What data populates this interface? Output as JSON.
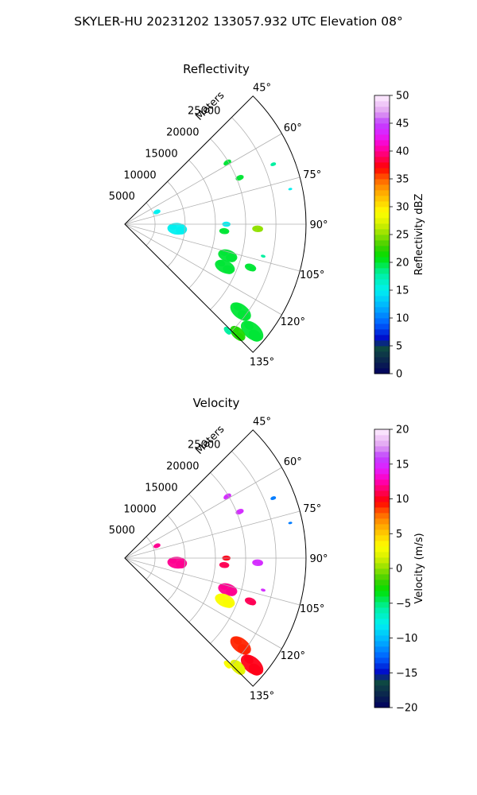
{
  "figure": {
    "suptitle": "SKYLER-HU  20231202  133057.932 UTC Elevation 08°"
  },
  "chart_data": [
    {
      "type": "ppi-sector",
      "title": "Reflectivity",
      "range_label": "Meters",
      "range_ticks": [
        5000,
        10000,
        15000,
        20000,
        25000
      ],
      "range_tick_labels": [
        "5000",
        "10000",
        "15000",
        "20000",
        "25000"
      ],
      "range_max": 30000,
      "azimuth_ticks": [
        45,
        60,
        75,
        90,
        105,
        120,
        135
      ],
      "azimuth_tick_labels": [
        "45°",
        "60°",
        "75°",
        "90°",
        "105°",
        "120°",
        "135°"
      ],
      "azimuth_range": [
        45,
        135
      ],
      "grid": true,
      "colorbar": {
        "label": "Reflectivity dBZ",
        "range": [
          0,
          50
        ],
        "ticks": [
          0,
          5,
          10,
          15,
          20,
          25,
          30,
          35,
          40,
          45,
          50
        ],
        "tick_labels": [
          "0",
          "5",
          "10",
          "15",
          "20",
          "25",
          "30",
          "35",
          "40",
          "45",
          "50"
        ]
      },
      "cells": [
        {
          "az": 69,
          "r": 5700,
          "v": 15,
          "s": 0.28
        },
        {
          "az": 95,
          "r": 8700,
          "v": 15,
          "s": 0.75
        },
        {
          "az": 94,
          "r": 16500,
          "v": 20,
          "s": 0.38
        },
        {
          "az": 92,
          "r": 22000,
          "v": 25,
          "s": 0.42
        },
        {
          "az": 90,
          "r": 16800,
          "v": 15,
          "s": 0.32
        },
        {
          "az": 107,
          "r": 17800,
          "v": 20,
          "s": 0.75
        },
        {
          "az": 113,
          "r": 18000,
          "v": 20,
          "s": 0.8
        },
        {
          "az": 109,
          "r": 22000,
          "v": 20,
          "s": 0.45
        },
        {
          "az": 127,
          "r": 24000,
          "v": 20,
          "s": 0.9
        },
        {
          "az": 130,
          "r": 27500,
          "v": 20,
          "s": 1.0
        },
        {
          "az": 134,
          "r": 26000,
          "v": 22,
          "s": 0.7
        },
        {
          "az": 136,
          "r": 24500,
          "v": 18,
          "s": 0.35
        },
        {
          "az": 59,
          "r": 19800,
          "v": 20,
          "s": 0.32
        },
        {
          "az": 68,
          "r": 20500,
          "v": 20,
          "s": 0.32
        },
        {
          "az": 68,
          "r": 26500,
          "v": 18,
          "s": 0.22
        },
        {
          "az": 78,
          "r": 28000,
          "v": 15,
          "s": 0.15
        },
        {
          "az": 103,
          "r": 23500,
          "v": 18,
          "s": 0.18
        }
      ]
    },
    {
      "type": "ppi-sector",
      "title": "Velocity",
      "range_label": "Meters",
      "range_ticks": [
        5000,
        10000,
        15000,
        20000,
        25000
      ],
      "range_tick_labels": [
        "5000",
        "10000",
        "15000",
        "20000",
        "25000"
      ],
      "range_max": 30000,
      "azimuth_ticks": [
        45,
        60,
        75,
        90,
        105,
        120,
        135
      ],
      "azimuth_tick_labels": [
        "45°",
        "60°",
        "75°",
        "90°",
        "105°",
        "120°",
        "135°"
      ],
      "azimuth_range": [
        45,
        135
      ],
      "grid": true,
      "colorbar": {
        "label": "Velocity (m/s)",
        "range": [
          -20,
          20
        ],
        "ticks": [
          -20,
          -15,
          -10,
          -5,
          0,
          5,
          10,
          15,
          20
        ],
        "tick_labels": [
          "−20",
          "−15",
          "−10",
          "−5",
          "0",
          "5",
          "10",
          "15",
          "20"
        ]
      },
      "cells": [
        {
          "az": 69,
          "r": 5700,
          "v": 12,
          "s": 0.28
        },
        {
          "az": 95,
          "r": 8700,
          "v": 12,
          "s": 0.75
        },
        {
          "az": 94,
          "r": 16500,
          "v": 11,
          "s": 0.38
        },
        {
          "az": 92,
          "r": 22000,
          "v": 15,
          "s": 0.42
        },
        {
          "az": 90,
          "r": 16800,
          "v": 10,
          "s": 0.32
        },
        {
          "az": 107,
          "r": 17800,
          "v": 12,
          "s": 0.75
        },
        {
          "az": 113,
          "r": 18000,
          "v": 3,
          "s": 0.8
        },
        {
          "az": 109,
          "r": 22000,
          "v": 11,
          "s": 0.45
        },
        {
          "az": 127,
          "r": 24000,
          "v": 9,
          "s": 0.9
        },
        {
          "az": 130,
          "r": 27500,
          "v": 10,
          "s": 1.0
        },
        {
          "az": 134,
          "r": 26000,
          "v": 2,
          "s": 0.7
        },
        {
          "az": 136,
          "r": 24500,
          "v": 3,
          "s": 0.35
        },
        {
          "az": 59,
          "r": 19800,
          "v": 15,
          "s": 0.32
        },
        {
          "az": 68,
          "r": 20500,
          "v": 15,
          "s": 0.32
        },
        {
          "az": 68,
          "r": 26500,
          "v": -12,
          "s": 0.22
        },
        {
          "az": 78,
          "r": 28000,
          "v": -12,
          "s": 0.15
        },
        {
          "az": 103,
          "r": 23500,
          "v": 15,
          "s": 0.18
        }
      ]
    }
  ]
}
